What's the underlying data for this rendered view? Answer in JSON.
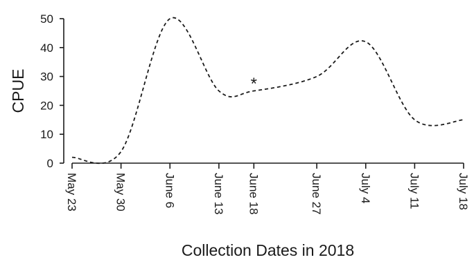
{
  "chart_data": {
    "type": "line",
    "title": "",
    "xlabel": "Collection Dates in 2018",
    "ylabel": "CPUE",
    "ylim": [
      0,
      50
    ],
    "yticks": [
      0,
      10,
      20,
      30,
      40,
      50
    ],
    "grid": false,
    "legend": "none",
    "categories": [
      "May 23",
      "May 30",
      "June 6",
      "June 13",
      "June 18",
      "June 27",
      "July 4",
      "July 11",
      "July 18"
    ],
    "x": [
      "2018-05-23",
      "2018-05-30",
      "2018-06-06",
      "2018-06-13",
      "2018-06-18",
      "2018-06-27",
      "2018-07-04",
      "2018-07-11",
      "2018-07-18"
    ],
    "series": [
      {
        "values": [
          2,
          4,
          50,
          25,
          25,
          30,
          42,
          15,
          15
        ],
        "line_style": "dashed"
      }
    ],
    "annotations": [
      {
        "text": "*",
        "x": "2018-06-18",
        "y": 28
      }
    ]
  }
}
